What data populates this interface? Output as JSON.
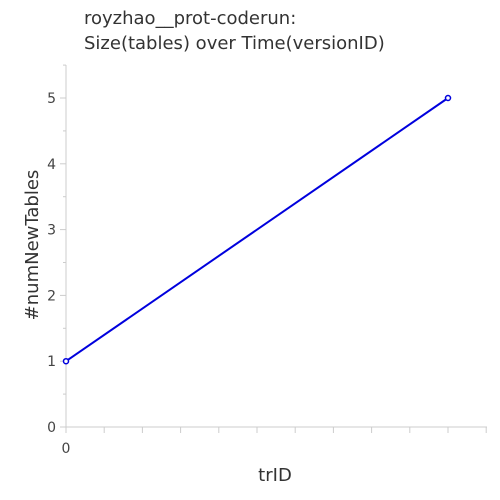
{
  "chart_data": {
    "type": "line",
    "title": {
      "line1": "royzhao__prot-coderun:",
      "line2": "Size(tables) over Time(versionID)"
    },
    "xlabel": "trID",
    "ylabel": "#numNewTables",
    "x_tick_labels": [
      "0"
    ],
    "y_tick_labels": [
      "0",
      "1",
      "2",
      "3",
      "4",
      "5"
    ],
    "xlim": [
      0,
      11
    ],
    "ylim": [
      0,
      5.5
    ],
    "series": [
      {
        "x": [
          0,
          10
        ],
        "y": [
          1,
          5
        ],
        "color": "#0000dd"
      }
    ],
    "grid": false,
    "legend": "none"
  }
}
